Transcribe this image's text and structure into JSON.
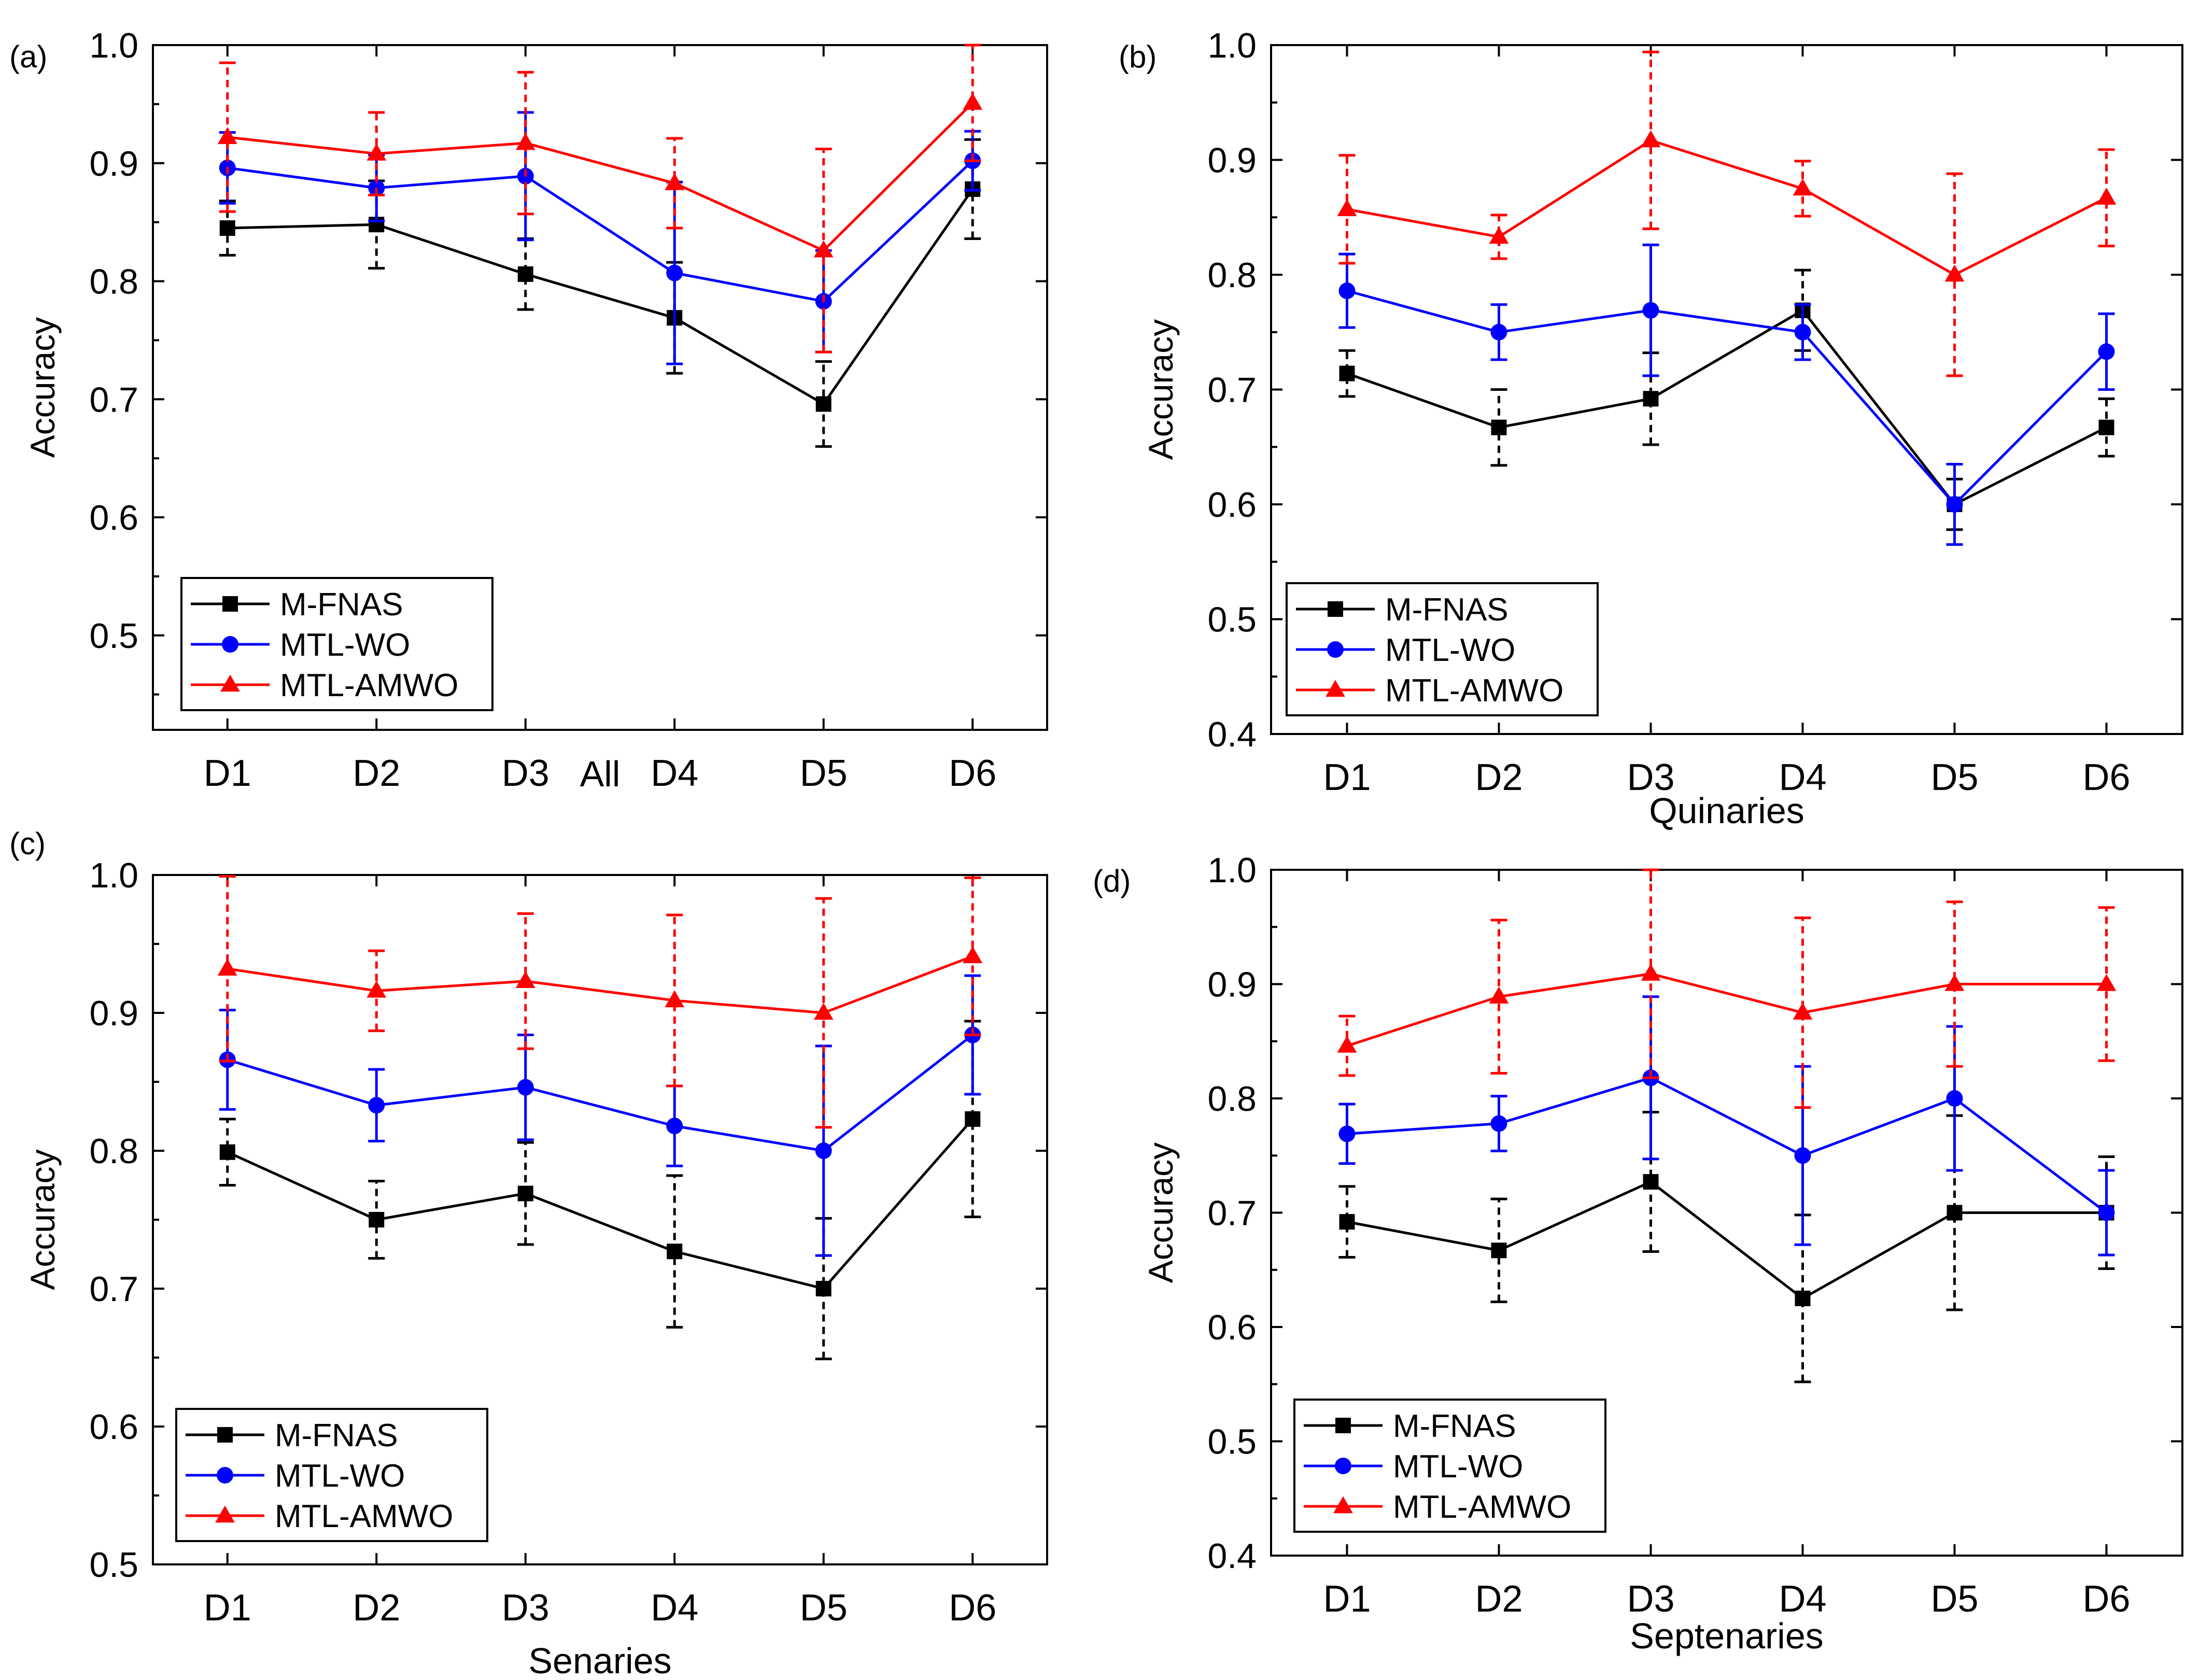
{
  "figure": {
    "series_colors": {
      "M-FNAS": "#000000",
      "MTL-WO": "#0000ff",
      "MTL-AMWO": "#ff0000"
    }
  },
  "chart_data": [
    {
      "type": "line",
      "panel_label": "(a)",
      "title": "",
      "xlabel": "All",
      "ylabel": "Accuracy",
      "categories": [
        "D1",
        "D2",
        "D3",
        "D4",
        "D5",
        "D6"
      ],
      "ylim": [
        0.42,
        1.0
      ],
      "yticks": [
        0.5,
        0.6,
        0.7,
        0.8,
        0.9,
        1.0
      ],
      "ytick_labels": [
        "0.5",
        "0.6",
        "0.7",
        "0.8",
        "0.9",
        "1.0"
      ],
      "legend": {
        "placement": "lower-left",
        "entries": [
          "M-FNAS",
          "MTL-WO",
          "MTL-AMWO"
        ]
      },
      "series": [
        {
          "name": "M-FNAS",
          "color": "#000000",
          "marker": "square",
          "error_style": "dashed",
          "values": [
            0.845,
            0.848,
            0.806,
            0.769,
            0.696,
            0.878
          ],
          "err_low": [
            0.822,
            0.811,
            0.776,
            0.722,
            0.66,
            0.836
          ],
          "err_high": [
            0.868,
            0.885,
            0.836,
            0.816,
            0.732,
            0.92
          ]
        },
        {
          "name": "MTL-WO",
          "color": "#0000ff",
          "marker": "circle",
          "error_style": "solid",
          "values": [
            0.896,
            0.879,
            0.889,
            0.807,
            0.783,
            0.902
          ],
          "err_low": [
            0.866,
            0.851,
            0.835,
            0.73,
            0.74,
            0.877
          ],
          "err_high": [
            0.926,
            0.907,
            0.943,
            0.884,
            0.826,
            0.927
          ]
        },
        {
          "name": "MTL-AMWO",
          "color": "#ff0000",
          "marker": "triangle",
          "error_style": "dashed",
          "values": [
            0.922,
            0.908,
            0.917,
            0.883,
            0.826,
            0.951
          ],
          "err_low": [
            0.859,
            0.873,
            0.857,
            0.845,
            0.74,
            0.902
          ],
          "err_high": [
            0.985,
            0.943,
            0.977,
            0.921,
            0.912,
            1.0
          ]
        }
      ]
    },
    {
      "type": "line",
      "panel_label": "(b)",
      "title": "",
      "xlabel": "Quinaries",
      "ylabel": "Accuracy",
      "categories": [
        "D1",
        "D2",
        "D3",
        "D4",
        "D5",
        "D6"
      ],
      "ylim": [
        0.4,
        1.0
      ],
      "yticks": [
        0.4,
        0.5,
        0.6,
        0.7,
        0.8,
        0.9,
        1.0
      ],
      "ytick_labels": [
        "0.4",
        "0.5",
        "0.6",
        "0.7",
        "0.8",
        "0.9",
        "1.0"
      ],
      "legend": {
        "placement": "lower-left",
        "entries": [
          "M-FNAS",
          "MTL-WO",
          "MTL-AMWO"
        ]
      },
      "series": [
        {
          "name": "M-FNAS",
          "color": "#000000",
          "marker": "square",
          "error_style": "dashed",
          "values": [
            0.714,
            0.667,
            0.692,
            0.769,
            0.6,
            0.667
          ],
          "err_low": [
            0.694,
            0.634,
            0.652,
            0.734,
            0.578,
            0.642
          ],
          "err_high": [
            0.734,
            0.7,
            0.732,
            0.804,
            0.622,
            0.692
          ]
        },
        {
          "name": "MTL-WO",
          "color": "#0000ff",
          "marker": "circle",
          "error_style": "solid",
          "values": [
            0.786,
            0.75,
            0.769,
            0.75,
            0.6,
            0.733
          ],
          "err_low": [
            0.754,
            0.726,
            0.712,
            0.726,
            0.565,
            0.7
          ],
          "err_high": [
            0.818,
            0.774,
            0.826,
            0.774,
            0.635,
            0.766
          ]
        },
        {
          "name": "MTL-AMWO",
          "color": "#ff0000",
          "marker": "triangle",
          "error_style": "dashed",
          "values": [
            0.857,
            0.833,
            0.917,
            0.875,
            0.8,
            0.867
          ],
          "err_low": [
            0.81,
            0.814,
            0.84,
            0.851,
            0.712,
            0.825
          ],
          "err_high": [
            0.904,
            0.852,
            0.994,
            0.899,
            0.888,
            0.909
          ]
        }
      ]
    },
    {
      "type": "line",
      "panel_label": "(c)",
      "title": "",
      "xlabel": "Senaries",
      "ylabel": "Accuracy",
      "categories": [
        "D1",
        "D2",
        "D3",
        "D4",
        "D5",
        "D6"
      ],
      "ylim": [
        0.5,
        1.0
      ],
      "yticks": [
        0.5,
        0.6,
        0.7,
        0.8,
        0.9,
        1.0
      ],
      "ytick_labels": [
        "0.5",
        "0.6",
        "0.7",
        "0.8",
        "0.9",
        "1.0"
      ],
      "legend": {
        "placement": "lower-left",
        "entries": [
          "M-FNAS",
          "MTL-WO",
          "MTL-AMWO"
        ]
      },
      "series": [
        {
          "name": "M-FNAS",
          "color": "#000000",
          "marker": "square",
          "error_style": "dashed",
          "values": [
            0.799,
            0.75,
            0.769,
            0.727,
            0.7,
            0.823
          ],
          "err_low": [
            0.775,
            0.722,
            0.732,
            0.672,
            0.649,
            0.752
          ],
          "err_high": [
            0.823,
            0.778,
            0.806,
            0.782,
            0.751,
            0.894
          ]
        },
        {
          "name": "MTL-WO",
          "color": "#0000ff",
          "marker": "circle",
          "error_style": "solid",
          "values": [
            0.866,
            0.833,
            0.846,
            0.818,
            0.8,
            0.884
          ],
          "err_low": [
            0.83,
            0.807,
            0.808,
            0.789,
            0.724,
            0.841
          ],
          "err_high": [
            0.902,
            0.859,
            0.884,
            0.847,
            0.876,
            0.927
          ]
        },
        {
          "name": "MTL-AMWO",
          "color": "#ff0000",
          "marker": "triangle",
          "error_style": "dashed",
          "values": [
            0.932,
            0.916,
            0.923,
            0.909,
            0.9,
            0.941
          ],
          "err_low": [
            0.865,
            0.887,
            0.874,
            0.847,
            0.817,
            0.884
          ],
          "err_high": [
            0.999,
            0.945,
            0.972,
            0.971,
            0.983,
            0.998
          ]
        }
      ]
    },
    {
      "type": "line",
      "panel_label": "(d)",
      "title": "",
      "xlabel": "Septenaries",
      "ylabel": "Accuracy",
      "categories": [
        "D1",
        "D2",
        "D3",
        "D4",
        "D5",
        "D6"
      ],
      "ylim": [
        0.4,
        1.0
      ],
      "yticks": [
        0.4,
        0.5,
        0.6,
        0.7,
        0.8,
        0.9,
        1.0
      ],
      "ytick_labels": [
        "0.4",
        "0.5",
        "0.6",
        "0.7",
        "0.8",
        "0.9",
        "1.0"
      ],
      "legend": {
        "placement": "lower-left",
        "entries": [
          "M-FNAS",
          "MTL-WO",
          "MTL-AMWO"
        ]
      },
      "series": [
        {
          "name": "M-FNAS",
          "color": "#000000",
          "marker": "square",
          "error_style": "dashed",
          "values": [
            0.692,
            0.667,
            0.727,
            0.625,
            0.7,
            0.7
          ],
          "err_low": [
            0.661,
            0.622,
            0.666,
            0.552,
            0.615,
            0.651
          ],
          "err_high": [
            0.723,
            0.712,
            0.788,
            0.698,
            0.785,
            0.749
          ]
        },
        {
          "name": "MTL-WO",
          "color": "#0000ff",
          "marker": "circle",
          "error_style": "solid",
          "values": [
            0.769,
            0.778,
            0.818,
            0.75,
            0.8,
            0.7
          ],
          "err_low": [
            0.743,
            0.754,
            0.747,
            0.672,
            0.737,
            0.663
          ],
          "err_high": [
            0.795,
            0.802,
            0.889,
            0.828,
            0.863,
            0.737
          ]
        },
        {
          "name": "MTL-AMWO",
          "color": "#ff0000",
          "marker": "triangle",
          "error_style": "dashed",
          "values": [
            0.846,
            0.889,
            0.909,
            0.875,
            0.9,
            0.9
          ],
          "err_low": [
            0.82,
            0.822,
            0.818,
            0.792,
            0.828,
            0.833
          ],
          "err_high": [
            0.872,
            0.956,
            1.0,
            0.958,
            0.972,
            0.967
          ]
        }
      ]
    }
  ]
}
